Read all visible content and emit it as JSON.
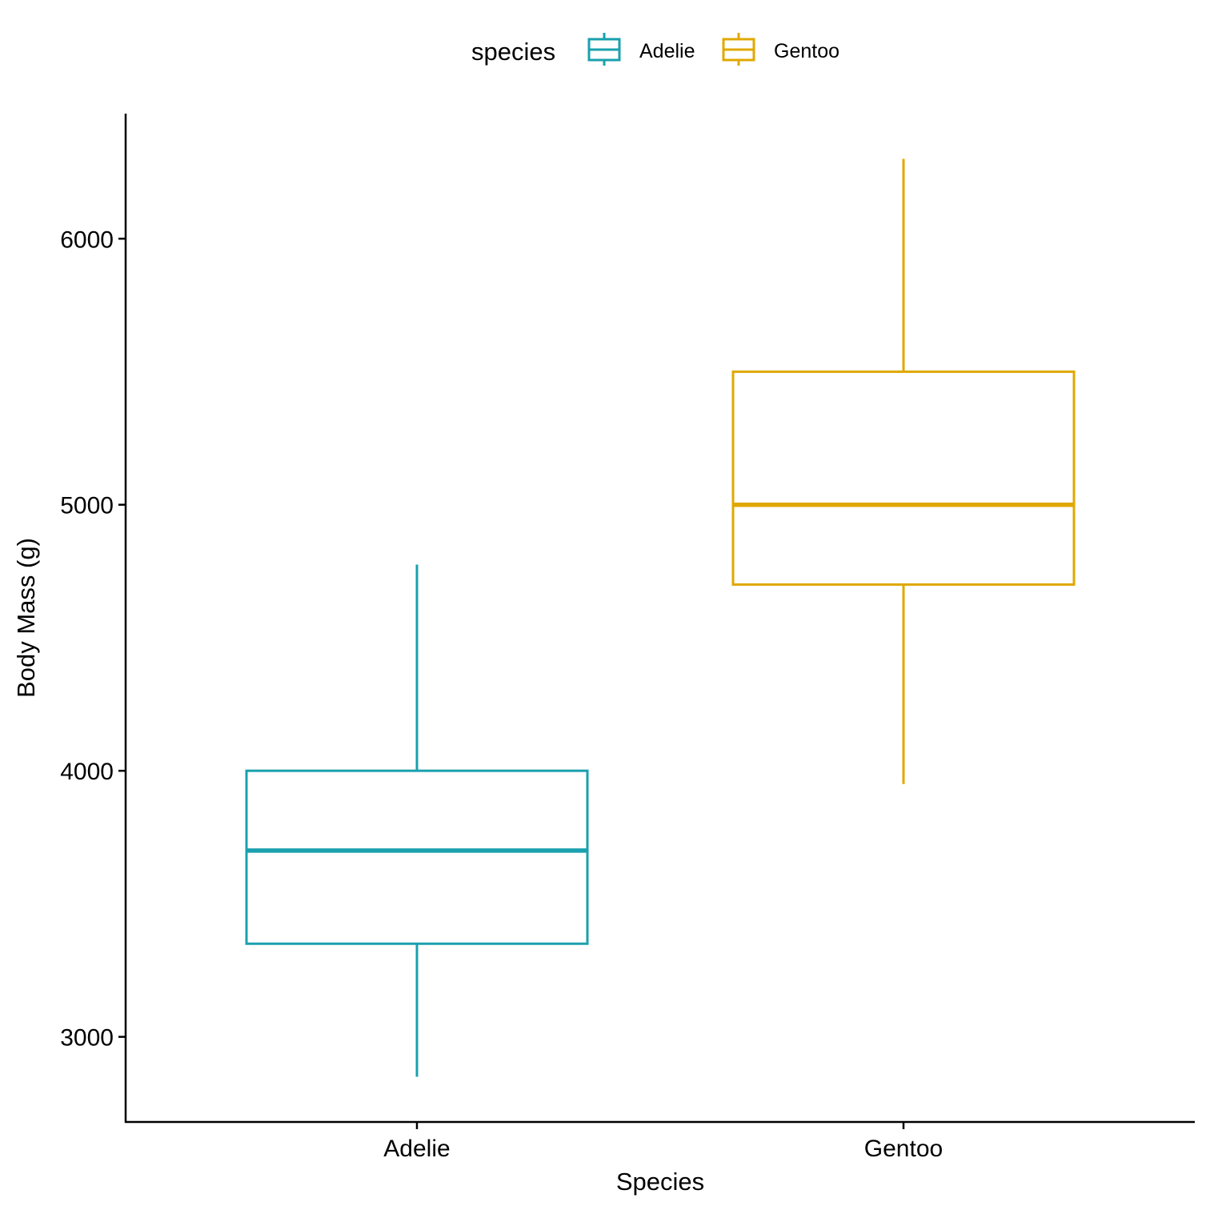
{
  "chart_data": {
    "type": "boxplot",
    "title": "",
    "xlabel": "Species",
    "ylabel": "Body Mass (g)",
    "categories": [
      "Adelie",
      "Gentoo"
    ],
    "y_ticks": [
      "3000",
      "4000",
      "5000",
      "6000"
    ],
    "ylim": [
      2680,
      6470
    ],
    "grid": false,
    "legend": {
      "title": "species",
      "position": "top",
      "entries": [
        "Adelie",
        "Gentoo"
      ]
    },
    "series": [
      {
        "category": "Adelie",
        "color": "#1aa0ae",
        "whisker_low": 2850,
        "q1": 3350,
        "median": 3700,
        "q3": 4000,
        "whisker_high": 4775
      },
      {
        "category": "Gentoo",
        "color": "#e0a800",
        "whisker_low": 3950,
        "q1": 4700,
        "median": 5000,
        "q3": 5500,
        "whisker_high": 6300
      }
    ]
  }
}
